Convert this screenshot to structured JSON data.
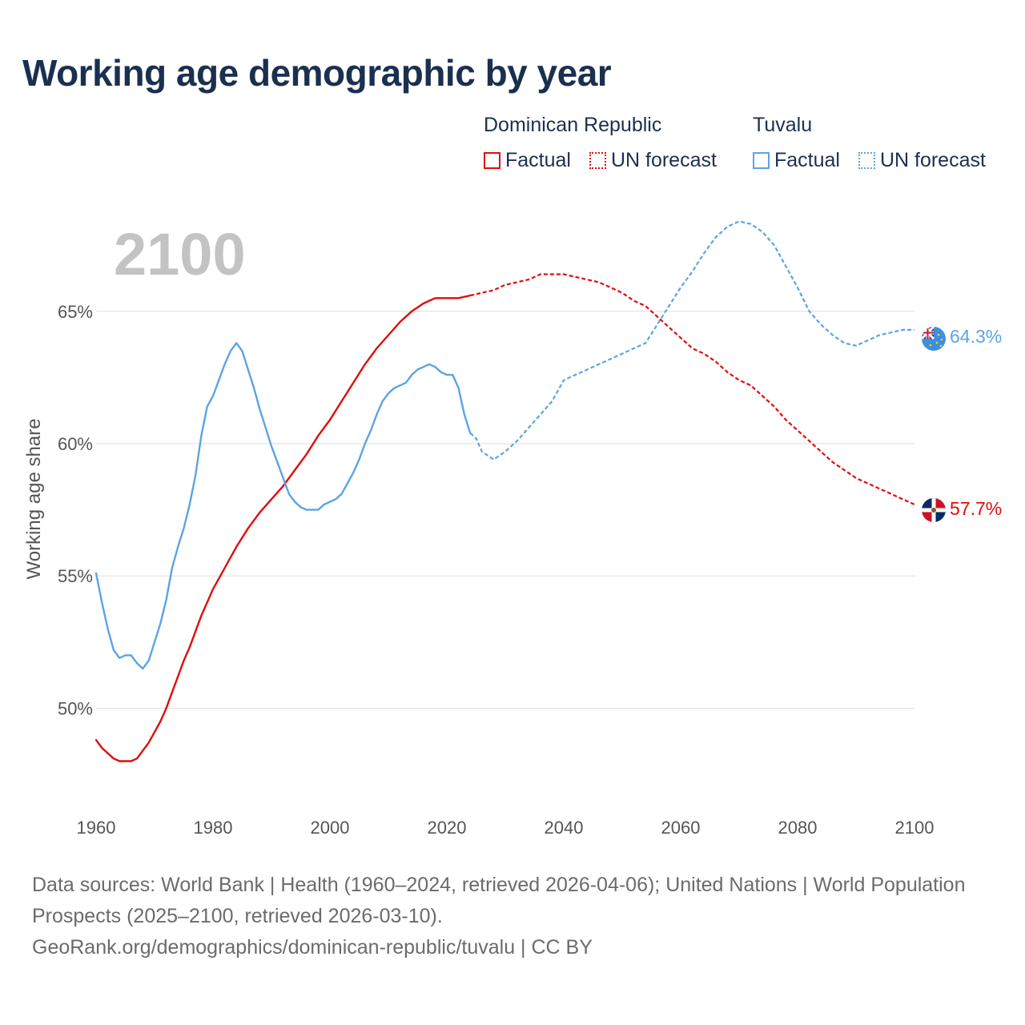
{
  "title": "Working age demographic by year",
  "year_watermark": "2100",
  "legend": {
    "groups": [
      {
        "name": "Dominican Republic",
        "color": "#e00d0d",
        "items": [
          {
            "label": "Factual",
            "style": "solid"
          },
          {
            "label": "UN forecast",
            "style": "dotted"
          }
        ]
      },
      {
        "name": "Tuvalu",
        "color": "#5ba4e3",
        "items": [
          {
            "label": "Factual",
            "style": "solid"
          },
          {
            "label": "UN forecast",
            "style": "dotted"
          }
        ]
      }
    ]
  },
  "footer": {
    "sources": "Data sources: World Bank | Health (1960–2024, retrieved 2026-04-06); United Nations | World Population Prospects (2025–2100, retrieved 2026-03-10).",
    "link": "GeoRank.org/demographics/dominican-republic/tuvalu | CC BY"
  },
  "chart_data": {
    "type": "line",
    "title": "Working age demographic by year",
    "xlabel": "",
    "ylabel": "Working age share",
    "xlim": [
      1960,
      2100
    ],
    "ylim": [
      46.2,
      69.2
    ],
    "x_ticks": [
      1960,
      1980,
      2000,
      2020,
      2040,
      2060,
      2080,
      2100
    ],
    "y_ticks": [
      50,
      55,
      60,
      65
    ],
    "y_tick_labels": [
      "50%",
      "55%",
      "60%",
      "65%"
    ],
    "grid": "horizontal",
    "legend_position": "top-right",
    "forecast_start_year": 2024,
    "end_labels": [
      {
        "series": "Tuvalu",
        "text": "64.3%",
        "value": 64.3,
        "flag": "tuvalu-flag-icon"
      },
      {
        "series": "Dominican Republic",
        "text": "57.7%",
        "value": 57.7,
        "flag": "dominican-republic-flag-icon"
      }
    ],
    "series": [
      {
        "name": "Dominican Republic",
        "color": "#e00d0d",
        "points": [
          [
            1960,
            48.8
          ],
          [
            1961,
            48.5
          ],
          [
            1962,
            48.3
          ],
          [
            1963,
            48.1
          ],
          [
            1964,
            48.0
          ],
          [
            1965,
            48.0
          ],
          [
            1966,
            48.0
          ],
          [
            1967,
            48.1
          ],
          [
            1968,
            48.4
          ],
          [
            1969,
            48.7
          ],
          [
            1970,
            49.1
          ],
          [
            1971,
            49.5
          ],
          [
            1972,
            50.0
          ],
          [
            1973,
            50.6
          ],
          [
            1974,
            51.2
          ],
          [
            1975,
            51.8
          ],
          [
            1976,
            52.3
          ],
          [
            1977,
            52.9
          ],
          [
            1978,
            53.5
          ],
          [
            1979,
            54.0
          ],
          [
            1980,
            54.5
          ],
          [
            1982,
            55.3
          ],
          [
            1984,
            56.1
          ],
          [
            1986,
            56.8
          ],
          [
            1988,
            57.4
          ],
          [
            1990,
            57.9
          ],
          [
            1992,
            58.4
          ],
          [
            1994,
            59.0
          ],
          [
            1996,
            59.6
          ],
          [
            1998,
            60.3
          ],
          [
            2000,
            60.9
          ],
          [
            2002,
            61.6
          ],
          [
            2004,
            62.3
          ],
          [
            2006,
            63.0
          ],
          [
            2008,
            63.6
          ],
          [
            2010,
            64.1
          ],
          [
            2012,
            64.6
          ],
          [
            2014,
            65.0
          ],
          [
            2016,
            65.3
          ],
          [
            2018,
            65.5
          ],
          [
            2020,
            65.5
          ],
          [
            2022,
            65.5
          ],
          [
            2024,
            65.6
          ],
          [
            2026,
            65.7
          ],
          [
            2028,
            65.8
          ],
          [
            2030,
            66.0
          ],
          [
            2032,
            66.1
          ],
          [
            2034,
            66.2
          ],
          [
            2036,
            66.4
          ],
          [
            2038,
            66.4
          ],
          [
            2040,
            66.4
          ],
          [
            2042,
            66.3
          ],
          [
            2044,
            66.2
          ],
          [
            2046,
            66.1
          ],
          [
            2048,
            65.9
          ],
          [
            2050,
            65.7
          ],
          [
            2052,
            65.4
          ],
          [
            2054,
            65.2
          ],
          [
            2056,
            64.8
          ],
          [
            2058,
            64.4
          ],
          [
            2060,
            64.0
          ],
          [
            2062,
            63.6
          ],
          [
            2064,
            63.4
          ],
          [
            2066,
            63.1
          ],
          [
            2068,
            62.7
          ],
          [
            2070,
            62.4
          ],
          [
            2072,
            62.2
          ],
          [
            2074,
            61.8
          ],
          [
            2076,
            61.4
          ],
          [
            2078,
            60.9
          ],
          [
            2080,
            60.5
          ],
          [
            2082,
            60.1
          ],
          [
            2084,
            59.7
          ],
          [
            2086,
            59.3
          ],
          [
            2088,
            59.0
          ],
          [
            2090,
            58.7
          ],
          [
            2092,
            58.5
          ],
          [
            2094,
            58.3
          ],
          [
            2096,
            58.1
          ],
          [
            2098,
            57.9
          ],
          [
            2100,
            57.7
          ]
        ]
      },
      {
        "name": "Tuvalu",
        "color": "#5ba4e3",
        "points": [
          [
            1960,
            55.1
          ],
          [
            1961,
            54.0
          ],
          [
            1962,
            53.0
          ],
          [
            1963,
            52.2
          ],
          [
            1964,
            51.9
          ],
          [
            1965,
            52.0
          ],
          [
            1966,
            52.0
          ],
          [
            1967,
            51.7
          ],
          [
            1968,
            51.5
          ],
          [
            1969,
            51.8
          ],
          [
            1970,
            52.5
          ],
          [
            1971,
            53.2
          ],
          [
            1972,
            54.1
          ],
          [
            1973,
            55.3
          ],
          [
            1974,
            56.1
          ],
          [
            1975,
            56.8
          ],
          [
            1976,
            57.7
          ],
          [
            1977,
            58.8
          ],
          [
            1978,
            60.3
          ],
          [
            1979,
            61.4
          ],
          [
            1980,
            61.8
          ],
          [
            1981,
            62.4
          ],
          [
            1982,
            63.0
          ],
          [
            1983,
            63.5
          ],
          [
            1984,
            63.8
          ],
          [
            1985,
            63.5
          ],
          [
            1986,
            62.8
          ],
          [
            1987,
            62.1
          ],
          [
            1988,
            61.3
          ],
          [
            1989,
            60.6
          ],
          [
            1990,
            59.9
          ],
          [
            1991,
            59.3
          ],
          [
            1992,
            58.7
          ],
          [
            1993,
            58.1
          ],
          [
            1994,
            57.8
          ],
          [
            1995,
            57.6
          ],
          [
            1996,
            57.5
          ],
          [
            1997,
            57.5
          ],
          [
            1998,
            57.5
          ],
          [
            1999,
            57.7
          ],
          [
            2000,
            57.8
          ],
          [
            2001,
            57.9
          ],
          [
            2002,
            58.1
          ],
          [
            2003,
            58.5
          ],
          [
            2004,
            58.9
          ],
          [
            2005,
            59.4
          ],
          [
            2006,
            60.0
          ],
          [
            2007,
            60.5
          ],
          [
            2008,
            61.1
          ],
          [
            2009,
            61.6
          ],
          [
            2010,
            61.9
          ],
          [
            2011,
            62.1
          ],
          [
            2012,
            62.2
          ],
          [
            2013,
            62.3
          ],
          [
            2014,
            62.6
          ],
          [
            2015,
            62.8
          ],
          [
            2016,
            62.9
          ],
          [
            2017,
            63.0
          ],
          [
            2018,
            62.9
          ],
          [
            2019,
            62.7
          ],
          [
            2020,
            62.6
          ],
          [
            2021,
            62.6
          ],
          [
            2022,
            62.1
          ],
          [
            2023,
            61.1
          ],
          [
            2024,
            60.4
          ],
          [
            2025,
            60.2
          ],
          [
            2026,
            59.7
          ],
          [
            2028,
            59.4
          ],
          [
            2030,
            59.7
          ],
          [
            2032,
            60.1
          ],
          [
            2034,
            60.6
          ],
          [
            2036,
            61.1
          ],
          [
            2038,
            61.6
          ],
          [
            2040,
            62.4
          ],
          [
            2042,
            62.6
          ],
          [
            2044,
            62.8
          ],
          [
            2046,
            63.0
          ],
          [
            2048,
            63.2
          ],
          [
            2050,
            63.4
          ],
          [
            2052,
            63.6
          ],
          [
            2054,
            63.8
          ],
          [
            2056,
            64.5
          ],
          [
            2058,
            65.2
          ],
          [
            2060,
            65.9
          ],
          [
            2062,
            66.5
          ],
          [
            2064,
            67.2
          ],
          [
            2066,
            67.8
          ],
          [
            2068,
            68.2
          ],
          [
            2070,
            68.4
          ],
          [
            2072,
            68.3
          ],
          [
            2074,
            68.0
          ],
          [
            2076,
            67.5
          ],
          [
            2078,
            66.7
          ],
          [
            2080,
            65.9
          ],
          [
            2082,
            65.0
          ],
          [
            2084,
            64.5
          ],
          [
            2086,
            64.1
          ],
          [
            2088,
            63.8
          ],
          [
            2090,
            63.7
          ],
          [
            2092,
            63.9
          ],
          [
            2094,
            64.1
          ],
          [
            2096,
            64.2
          ],
          [
            2098,
            64.3
          ],
          [
            2100,
            64.3
          ]
        ]
      }
    ]
  }
}
